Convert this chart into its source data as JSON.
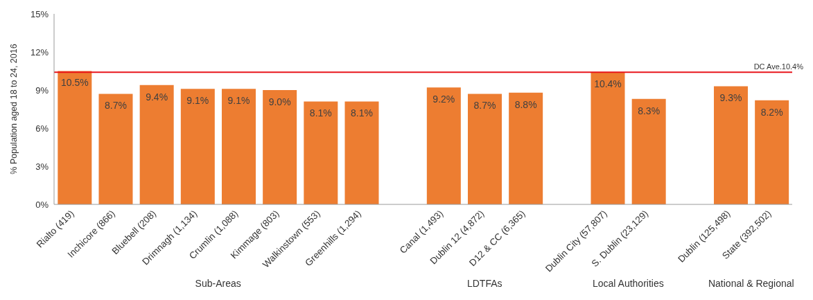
{
  "chart_data": {
    "type": "bar",
    "ylabel": "% Population aged 18 to 24, 2016",
    "categories": [
      "Rialto (419)",
      "Inchicore (866)",
      "Bluebell (208)",
      "Drimnagh (1,134)",
      "Crumlin (1,088)",
      "Kimmage (803)",
      "Walkinstown (553)",
      "Greenhills (1,294)",
      null,
      "Canal (1,493)",
      "Dublin 12 (4,872)",
      "D12 & CC (6,365)",
      null,
      "Dublin City (57,807)",
      "S. Dublin (23,129)",
      null,
      "Dublin (125,498)",
      "State (392,502)"
    ],
    "values": [
      10.5,
      8.7,
      9.4,
      9.1,
      9.1,
      9.0,
      8.1,
      8.1,
      null,
      9.2,
      8.7,
      8.8,
      null,
      10.4,
      8.3,
      null,
      9.3,
      8.2
    ],
    "value_labels": [
      "10.5%",
      "8.7%",
      "9.4%",
      "9.1%",
      "9.1%",
      "9.0%",
      "8.1%",
      "8.1%",
      null,
      "9.2%",
      "8.7%",
      "8.8%",
      null,
      "10.4%",
      "8.3%",
      null,
      "9.3%",
      "8.2%"
    ],
    "color": "#ed7d31",
    "ylim": [
      0,
      15
    ],
    "yticks": [
      {
        "value": 0,
        "label": "0%"
      },
      {
        "value": 3,
        "label": "3%"
      },
      {
        "value": 6,
        "label": "6%"
      },
      {
        "value": 9,
        "label": "9%"
      },
      {
        "value": 12,
        "label": "12%"
      },
      {
        "value": 15,
        "label": "15%"
      }
    ],
    "ref_lines": [
      {
        "axis": "y",
        "value": 10.4,
        "label": "DC Ave.10.4%",
        "color": "#e8141b"
      }
    ],
    "annotations": [
      "Sub-Areas",
      "LDTFAs",
      "Local Authorities",
      "National & Regional"
    ],
    "grid": false,
    "legend": false
  }
}
